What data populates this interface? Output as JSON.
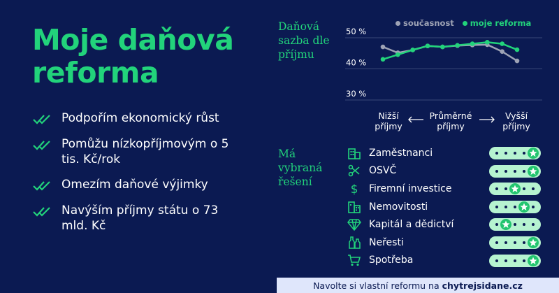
{
  "title": "Moje daňová reforma",
  "benefits": [
    "Podpořím ekonomický růst",
    "Pomůžu nízkopříjmovým o 5 tis. Kč/rok",
    "Omezím daňové výjimky",
    "Navýším příjmy státu o 73 mld. Kč"
  ],
  "chart_label": "Daňová sazba dle příjmu",
  "legend": {
    "current": "současnost",
    "mine": "moje reforma"
  },
  "colors": {
    "accent": "#22d37b",
    "current": "#9ea3b5",
    "bg": "#0b1a52",
    "pill": "#b6f3d0"
  },
  "chart_data": {
    "type": "line",
    "x": [
      1,
      2,
      3,
      4,
      5,
      6,
      7,
      8,
      9,
      10
    ],
    "yticks": [
      "50 %",
      "40 %",
      "30 %"
    ],
    "ylim": [
      30,
      50
    ],
    "series": [
      {
        "name": "současnost",
        "values": [
          45.5,
          43.6,
          44.5,
          45.8,
          45.5,
          45.9,
          46.1,
          46.2,
          44.0,
          41.0
        ]
      },
      {
        "name": "moje reforma",
        "values": [
          41.5,
          43.0,
          44.5,
          45.8,
          45.5,
          46.0,
          46.5,
          47.0,
          46.5,
          44.6
        ]
      }
    ]
  },
  "axis": {
    "low": "Nižší příjmy",
    "mid": "Průměrné příjmy",
    "high": "Vyšší příjmy"
  },
  "options_label": "Má vybraná řešení",
  "options": [
    {
      "icon": "building-icon",
      "label": "Zaměstnanci",
      "level": 1.0
    },
    {
      "icon": "scissors-icon",
      "label": "OSVČ",
      "level": 1.0
    },
    {
      "icon": "dollar-icon",
      "label": "Firemní investice",
      "level": 0.5
    },
    {
      "icon": "property-icon",
      "label": "Nemovitosti",
      "level": 0.75
    },
    {
      "icon": "diamond-icon",
      "label": "Kapitál a dědictví",
      "level": 0.25
    },
    {
      "icon": "bottles-icon",
      "label": "Neřesti",
      "level": 1.0
    },
    {
      "icon": "cart-icon",
      "label": "Spotřeba",
      "level": 1.0
    }
  ],
  "footer": {
    "text": "Navolte si vlastní reformu na",
    "link": "chytrejsidane.cz"
  }
}
